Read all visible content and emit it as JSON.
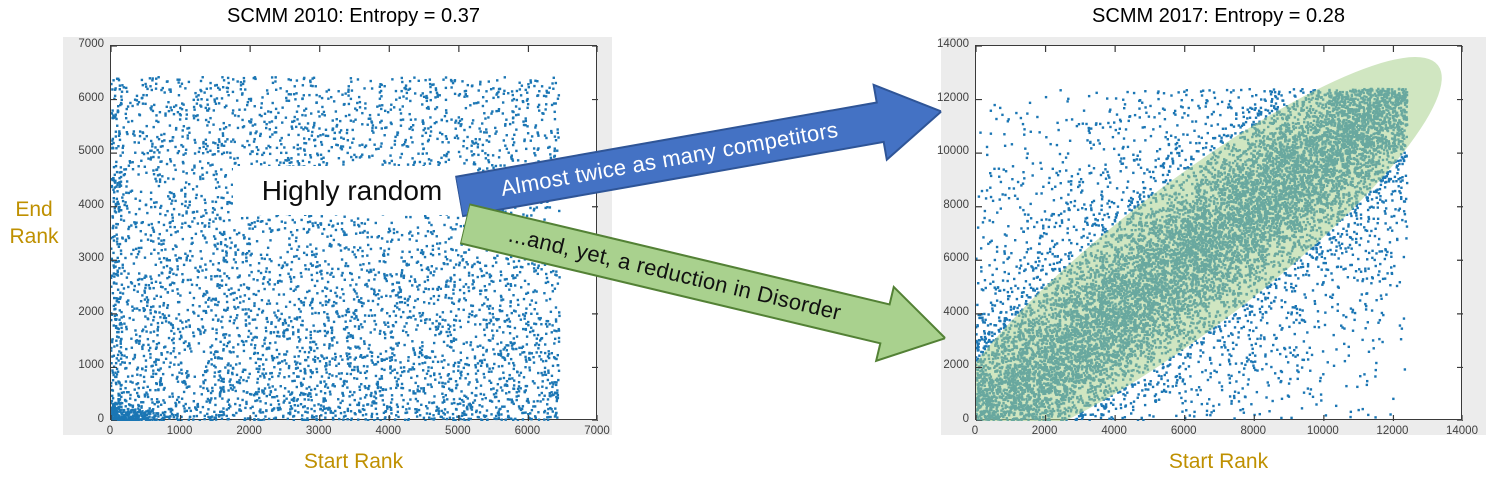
{
  "colors": {
    "point_blue": "#1b76b4",
    "panel_gray": "#ececec",
    "axis_line": "#3a3a3a",
    "tick_text": "#3f3f3f",
    "gold_label": "#BF9000",
    "blue_arrow_fill": "#4472C4",
    "blue_arrow_border": "#2F5597",
    "green_arrow_fill": "#A9D18E",
    "green_arrow_border": "#538135",
    "band_fill_rgba": "rgba(169,209,142,0.55)"
  },
  "annotations": {
    "highly_random": "Highly random",
    "blue_arrow_label": "Almost twice as many competitors",
    "green_arrow_label": "...and, yet, a reduction in Disorder"
  },
  "chart_data": [
    {
      "type": "scatter",
      "title": "SCMM 2010: Entropy = 0.37",
      "entropy": 0.37,
      "xlabel": "Start Rank",
      "ylabel": "End Rank",
      "ylabel_lines": [
        "End",
        "Rank"
      ],
      "xlim": [
        0,
        7000
      ],
      "ylim": [
        0,
        7000
      ],
      "x_ticks": [
        0,
        1000,
        2000,
        3000,
        4000,
        5000,
        6000,
        7000
      ],
      "y_ticks": [
        0,
        1000,
        2000,
        3000,
        4000,
        5000,
        6000,
        7000
      ],
      "grid": false,
      "n_points": 5310,
      "distribution": "highly random: near-uniform scatter of start rank vs end rank over 0-6450, with extra density at low end ranks and a dense cluster near the origin",
      "seed": 20101,
      "gen": {
        "uniform_n": 4200,
        "xmax": 6450,
        "ymax": 6420,
        "bottom_n": 700,
        "bottom_ymax": 3000,
        "corner_n": 260,
        "corner_xmax": 850,
        "corner_ymax": 400,
        "leftcol_n": 150,
        "leftcol_xmax": 170
      }
    },
    {
      "type": "scatter",
      "title": "SCMM 2017: Entropy = 0.28",
      "entropy": 0.28,
      "xlabel": "Start Rank",
      "ylabel": "",
      "xlim": [
        0,
        14000
      ],
      "ylim": [
        0,
        14000
      ],
      "x_ticks": [
        0,
        2000,
        4000,
        6000,
        8000,
        10000,
        12000,
        14000
      ],
      "y_ticks": [
        0,
        2000,
        4000,
        6000,
        8000,
        10000,
        12000,
        14000
      ],
      "grid": false,
      "n_points": 12300,
      "distribution": "start rank vs end rank over 0-12400 concentrated along the diagonal y = x (reduced disorder), with a translucent green ellipse highlighting the diagonal band",
      "seed": 20172,
      "gen": {
        "max": 12400,
        "band_n": 8800,
        "band_sigma": 1500,
        "wide_n": 3000,
        "wide_sigma": 4200,
        "uniform_n": 500
      },
      "ellipse_overlay": {
        "cx": 6200,
        "cy": 6200,
        "semi_major": 8900,
        "semi_minor": 2300,
        "along": "diagonal y=x"
      }
    }
  ]
}
